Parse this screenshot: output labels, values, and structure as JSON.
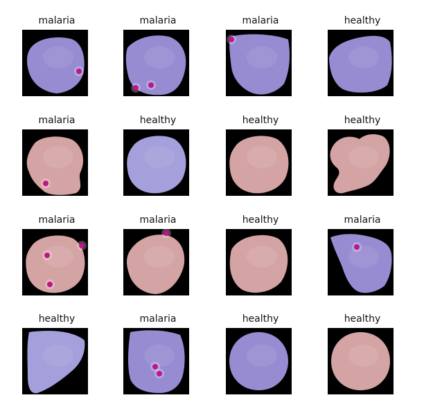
{
  "cells": [
    {
      "label": "malaria",
      "tone": "purple",
      "spots": 1,
      "shape": "rough-round"
    },
    {
      "label": "malaria",
      "tone": "purple",
      "spots": 2,
      "shape": "tilted-square"
    },
    {
      "label": "malaria",
      "tone": "purple",
      "spots": 1,
      "shape": "top-heavy"
    },
    {
      "label": "healthy",
      "tone": "purple",
      "spots": 0,
      "shape": "wide-rough"
    },
    {
      "label": "malaria",
      "tone": "pink",
      "spots": 1,
      "shape": "irregular"
    },
    {
      "label": "healthy",
      "tone": "lavender",
      "spots": 0,
      "shape": "round"
    },
    {
      "label": "healthy",
      "tone": "pink",
      "spots": 0,
      "shape": "round"
    },
    {
      "label": "healthy",
      "tone": "pink",
      "spots": 0,
      "shape": "blob"
    },
    {
      "label": "malaria",
      "tone": "pink",
      "spots": 3,
      "shape": "round"
    },
    {
      "label": "malaria",
      "tone": "pink",
      "spots": 1,
      "shape": "diamond"
    },
    {
      "label": "healthy",
      "tone": "pink",
      "spots": 0,
      "shape": "oval"
    },
    {
      "label": "malaria",
      "tone": "purple",
      "spots": 1,
      "shape": "ragged"
    },
    {
      "label": "healthy",
      "tone": "lavender",
      "spots": 0,
      "shape": "wedge"
    },
    {
      "label": "malaria",
      "tone": "purple",
      "spots": 2,
      "shape": "tall"
    },
    {
      "label": "healthy",
      "tone": "purple",
      "spots": 0,
      "shape": "circle"
    },
    {
      "label": "healthy",
      "tone": "pink",
      "spots": 0,
      "shape": "circle"
    }
  ],
  "colors": {
    "purple": "#9a8fd6",
    "lavender": "#a7a3df",
    "pink": "#d8a6a6",
    "spot": "#c0148a",
    "background": "#000000"
  }
}
